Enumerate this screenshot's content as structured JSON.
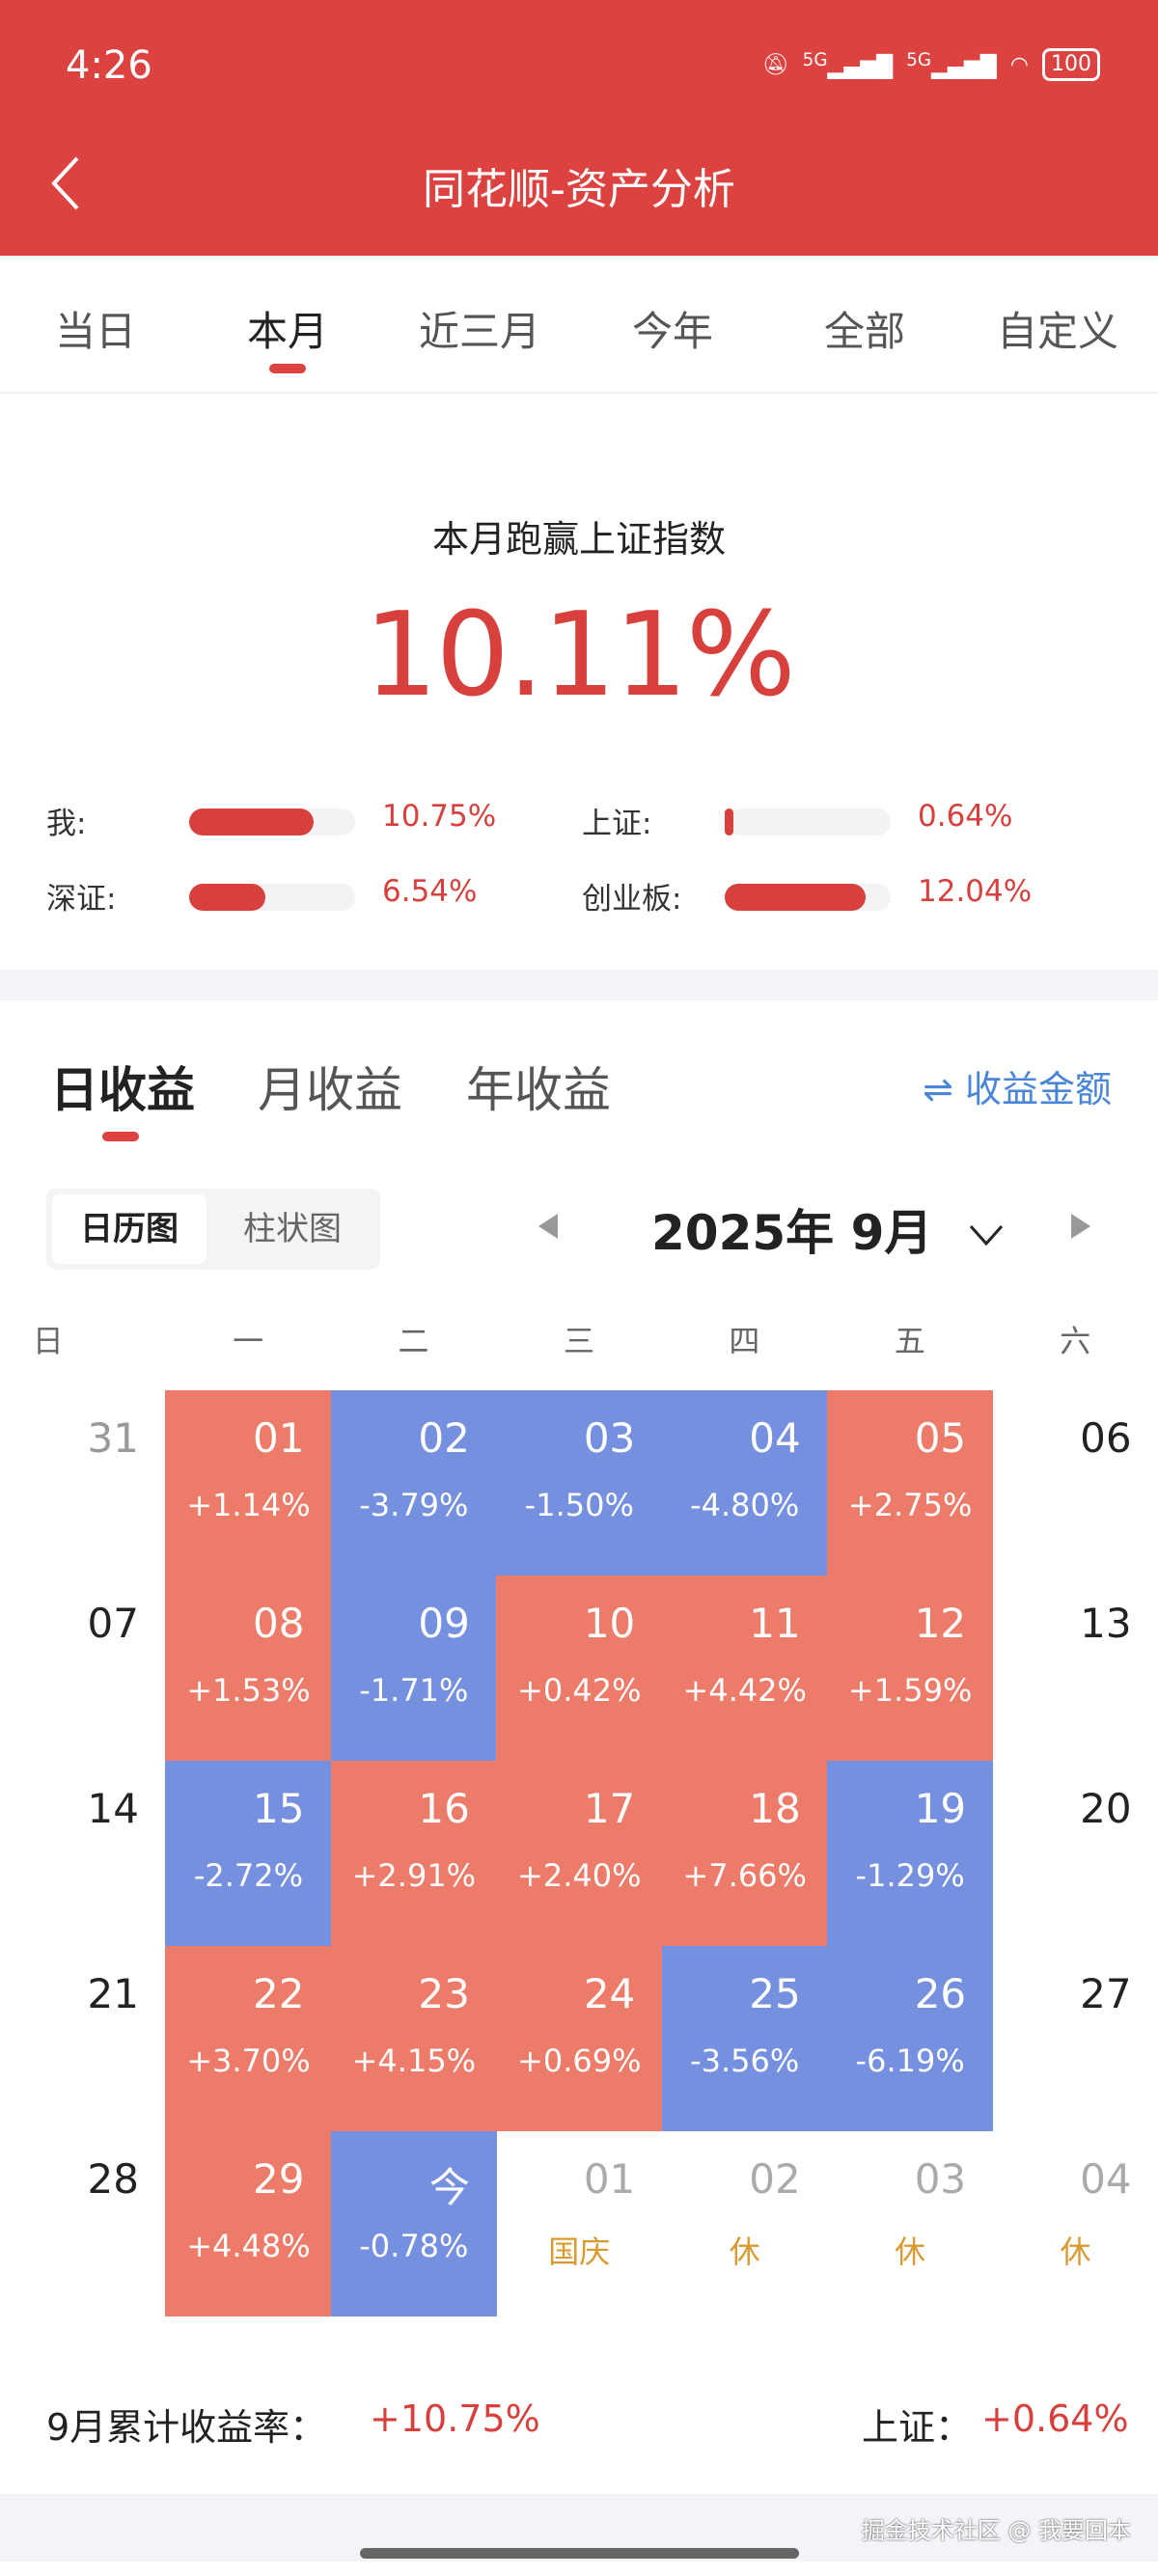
{
  "status_bar": {
    "time": "4:26",
    "network": [
      "5G",
      "5G"
    ],
    "battery": "100",
    "icons": [
      "mute-icon",
      "signal-icon",
      "wifi-icon",
      "battery-icon"
    ]
  },
  "header": {
    "title": "同花顺-资产分析",
    "back_icon": "chevron-left-icon"
  },
  "period_tabs": [
    {
      "label": "当日"
    },
    {
      "label": "本月",
      "active": true
    },
    {
      "label": "近三月"
    },
    {
      "label": "今年"
    },
    {
      "label": "全部"
    },
    {
      "label": "自定义"
    }
  ],
  "summary": {
    "title": "本月跑赢上证指数",
    "value": "10.11%",
    "comparisons": [
      {
        "label": "我:",
        "value": "10.75%",
        "fill": 0.75
      },
      {
        "label": "上证:",
        "value": "0.64%",
        "fill": 0.05
      },
      {
        "label": "深证:",
        "value": "6.54%",
        "fill": 0.46
      },
      {
        "label": "创业板:",
        "value": "12.04%",
        "fill": 0.85
      }
    ]
  },
  "returns_tabs": [
    {
      "label": "日收益",
      "active": true
    },
    {
      "label": "月收益"
    },
    {
      "label": "年收益"
    }
  ],
  "toggle": {
    "icon": "swap-icon",
    "symbol": "⇌",
    "label": "收益金额"
  },
  "view_switch": [
    {
      "label": "日历图",
      "active": true
    },
    {
      "label": "柱状图"
    }
  ],
  "month_selector": {
    "label": "2025年 9月",
    "prev_icon": "triangle-left-icon",
    "next_icon": "triangle-right-icon",
    "dropdown_icon": "chevron-down-icon"
  },
  "weekdays": [
    "日",
    "一",
    "二",
    "三",
    "四",
    "五",
    "六"
  ],
  "colors": {
    "brand": "#dc4340",
    "up": "#ec7b69",
    "down": "#7690e0",
    "holiday": "#d99a30",
    "link": "#4a86d8"
  },
  "calendar": [
    [
      {
        "d": "31",
        "t": "prev"
      },
      {
        "d": "01",
        "p": "+1.14%",
        "t": "up"
      },
      {
        "d": "02",
        "p": "-3.79%",
        "t": "down"
      },
      {
        "d": "03",
        "p": "-1.50%",
        "t": "down"
      },
      {
        "d": "04",
        "p": "-4.80%",
        "t": "down"
      },
      {
        "d": "05",
        "p": "+2.75%",
        "t": "up"
      },
      {
        "d": "06",
        "t": "plain"
      }
    ],
    [
      {
        "d": "07",
        "t": "plain"
      },
      {
        "d": "08",
        "p": "+1.53%",
        "t": "up"
      },
      {
        "d": "09",
        "p": "-1.71%",
        "t": "down"
      },
      {
        "d": "10",
        "p": "+0.42%",
        "t": "up"
      },
      {
        "d": "11",
        "p": "+4.42%",
        "t": "up"
      },
      {
        "d": "12",
        "p": "+1.59%",
        "t": "up"
      },
      {
        "d": "13",
        "t": "plain"
      }
    ],
    [
      {
        "d": "14",
        "t": "plain"
      },
      {
        "d": "15",
        "p": "-2.72%",
        "t": "down"
      },
      {
        "d": "16",
        "p": "+2.91%",
        "t": "up"
      },
      {
        "d": "17",
        "p": "+2.40%",
        "t": "up"
      },
      {
        "d": "18",
        "p": "+7.66%",
        "t": "up"
      },
      {
        "d": "19",
        "p": "-1.29%",
        "t": "down"
      },
      {
        "d": "20",
        "t": "plain"
      }
    ],
    [
      {
        "d": "21",
        "t": "plain"
      },
      {
        "d": "22",
        "p": "+3.70%",
        "t": "up"
      },
      {
        "d": "23",
        "p": "+4.15%",
        "t": "up"
      },
      {
        "d": "24",
        "p": "+0.69%",
        "t": "up"
      },
      {
        "d": "25",
        "p": "-3.56%",
        "t": "down"
      },
      {
        "d": "26",
        "p": "-6.19%",
        "t": "down"
      },
      {
        "d": "27",
        "t": "plain"
      }
    ],
    [
      {
        "d": "28",
        "t": "plain"
      },
      {
        "d": "29",
        "p": "+4.48%",
        "t": "up"
      },
      {
        "d": "今",
        "p": "-0.78%",
        "t": "down"
      },
      {
        "d": "01",
        "p": "国庆",
        "t": "next"
      },
      {
        "d": "02",
        "p": "休",
        "t": "next"
      },
      {
        "d": "03",
        "p": "休",
        "t": "next"
      },
      {
        "d": "04",
        "p": "休",
        "t": "next"
      }
    ]
  ],
  "footer": {
    "label": "9月累计收益率：",
    "value": "+10.75%",
    "index_label": "上证：",
    "index_value": "+0.64%"
  },
  "watermark": "掘金技术社区 @ 我要回本"
}
